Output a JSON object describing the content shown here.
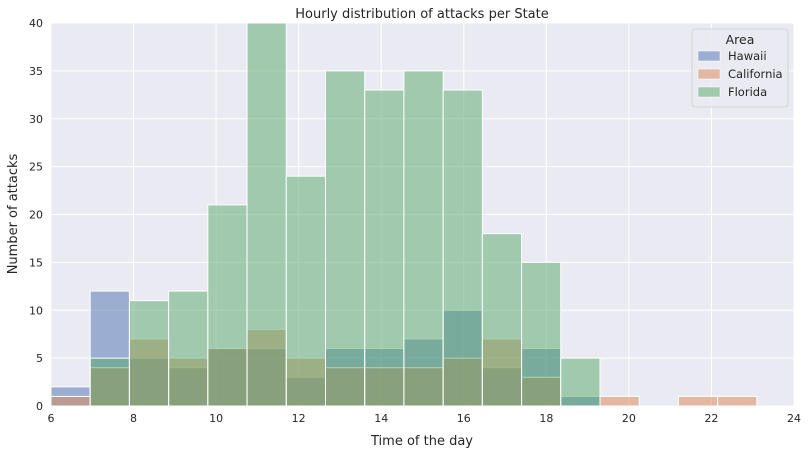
{
  "chart_data": {
    "type": "histogram",
    "title": "Hourly distribution of attacks per State",
    "xlabel": "Time of the day",
    "ylabel": "Number of attacks",
    "xlim": [
      6,
      24
    ],
    "ylim": [
      0,
      40
    ],
    "xticks": [
      6,
      8,
      10,
      12,
      14,
      16,
      18,
      20,
      22,
      24
    ],
    "yticks": [
      0,
      5,
      10,
      15,
      20,
      25,
      30,
      35,
      40
    ],
    "grid": true,
    "background": "#eaeaf2",
    "bin_width": 0.95,
    "bin_edges": [
      6,
      6.95,
      7.9,
      8.85,
      9.8,
      10.75,
      11.7,
      12.65,
      13.6,
      14.55,
      15.5,
      16.45,
      17.4,
      18.35,
      19.3,
      20.25,
      21.2,
      22.15,
      23.1
    ],
    "legend": {
      "title": "Area",
      "position": "top-right"
    },
    "series": [
      {
        "name": "Hawaii",
        "color": "#4c72b0",
        "values": [
          2,
          12,
          5,
          4,
          6,
          6,
          3,
          6,
          6,
          7,
          10,
          4,
          6,
          1,
          0,
          0,
          0,
          0
        ]
      },
      {
        "name": "California",
        "color": "#dd8452",
        "values": [
          1,
          4,
          7,
          5,
          6,
          8,
          5,
          4,
          4,
          4,
          5,
          7,
          3,
          0,
          1,
          0,
          1,
          1
        ]
      },
      {
        "name": "Florida",
        "color": "#55a868",
        "values": [
          0,
          5,
          11,
          12,
          21,
          40,
          24,
          35,
          33,
          35,
          33,
          18,
          15,
          5,
          0,
          0,
          0,
          0
        ]
      }
    ]
  }
}
